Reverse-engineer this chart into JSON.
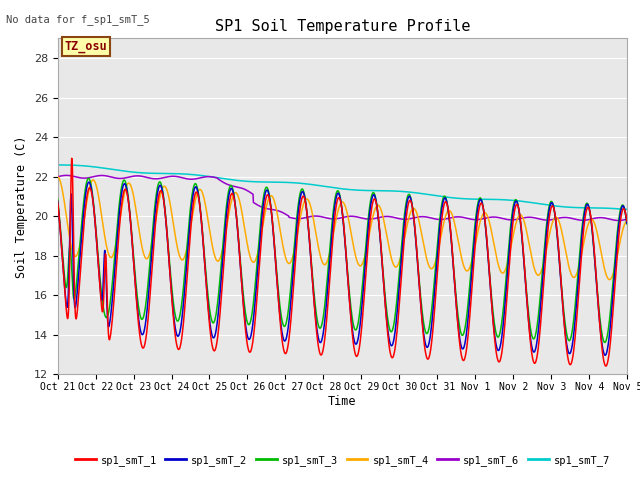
{
  "title": "SP1 Soil Temperature Profile",
  "xlabel": "Time",
  "ylabel": "Soil Temperature (C)",
  "no_data_text": "No data for f_sp1_smT_5",
  "tz_label": "TZ_osu",
  "ylim": [
    12,
    29
  ],
  "yticks": [
    12,
    14,
    16,
    18,
    20,
    22,
    24,
    26,
    28
  ],
  "x_tick_labels": [
    "Oct 21",
    "Oct 22",
    "Oct 23",
    "Oct 24",
    "Oct 25",
    "Oct 26",
    "Oct 27",
    "Oct 28",
    "Oct 29",
    "Oct 30",
    "Oct 31",
    "Nov 1",
    "Nov 2",
    "Nov 3",
    "Nov 4",
    "Nov 5"
  ],
  "bg_color": "#e8e8e8",
  "series_colors": {
    "sp1_smT_1": "#ff0000",
    "sp1_smT_2": "#0000cc",
    "sp1_smT_3": "#00bb00",
    "sp1_smT_4": "#ffaa00",
    "sp1_smT_6": "#9900cc",
    "sp1_smT_7": "#00cccc"
  },
  "legend_entries": [
    "sp1_smT_1",
    "sp1_smT_2",
    "sp1_smT_3",
    "sp1_smT_4",
    "sp1_smT_6",
    "sp1_smT_7"
  ]
}
